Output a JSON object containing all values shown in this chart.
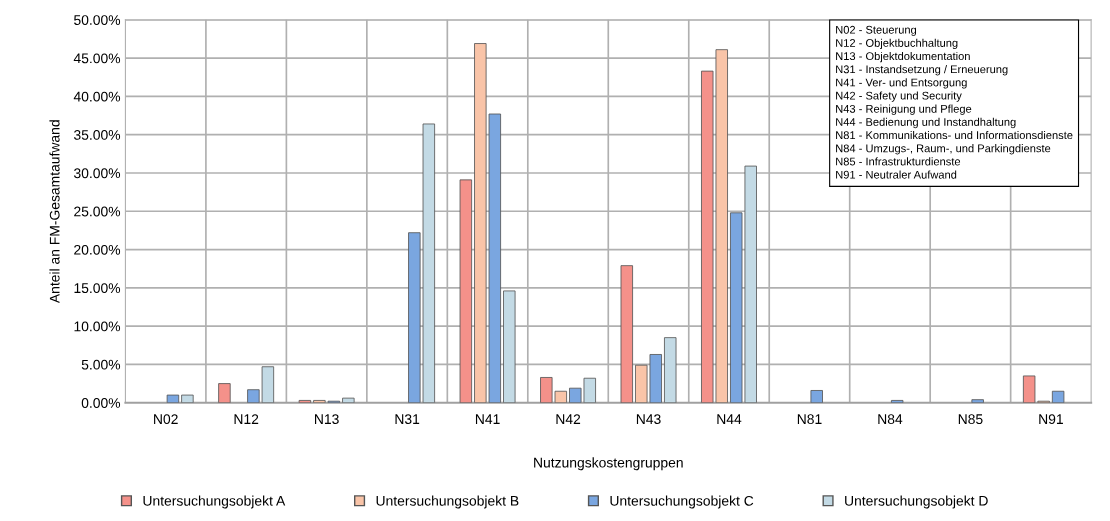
{
  "chart_data": {
    "type": "bar",
    "xlabel": "Nutzungskostengruppen",
    "ylabel": "Anteil an FM-Gesamtaufwand",
    "categories": [
      "N02",
      "N12",
      "N13",
      "N31",
      "N41",
      "N42",
      "N43",
      "N44",
      "N81",
      "N84",
      "N85",
      "N91"
    ],
    "series": [
      {
        "name": "Untersuchungsobjekt A",
        "color": "#f4918a",
        "values": [
          null,
          2.5,
          0.3,
          null,
          29.1,
          3.3,
          17.9,
          43.3,
          null,
          null,
          null,
          3.5
        ]
      },
      {
        "name": "Untersuchungsobjekt B",
        "color": "#f9c4a8",
        "values": [
          null,
          null,
          0.3,
          null,
          46.9,
          1.5,
          4.9,
          46.1,
          null,
          null,
          null,
          0.2
        ]
      },
      {
        "name": "Untersuchungsobjekt C",
        "color": "#7aa6e0",
        "values": [
          1.0,
          1.7,
          0.2,
          22.2,
          37.7,
          1.9,
          6.3,
          24.8,
          1.6,
          0.3,
          0.4,
          1.5
        ]
      },
      {
        "name": "Untersuchungsobjekt D",
        "color": "#c3dae5",
        "values": [
          1.0,
          4.7,
          0.6,
          36.4,
          14.6,
          3.2,
          8.5,
          30.9,
          null,
          null,
          null,
          null
        ]
      }
    ],
    "ylim": [
      0,
      50
    ],
    "yticks": [
      {
        "value": 0,
        "label": "0.00%"
      },
      {
        "value": 5,
        "label": "5.00%"
      },
      {
        "value": 10,
        "label": "10.00%"
      },
      {
        "value": 15,
        "label": "15.00%"
      },
      {
        "value": 20,
        "label": "20.00%"
      },
      {
        "value": 25,
        "label": "25.00%"
      },
      {
        "value": 30,
        "label": "30.00%"
      },
      {
        "value": 35,
        "label": "35.00%"
      },
      {
        "value": 40,
        "label": "40.00%"
      },
      {
        "value": 45,
        "label": "45.00%"
      },
      {
        "value": 50,
        "label": "50.00%"
      }
    ],
    "grid": true,
    "legend": "bottom",
    "annotations": [
      "N02 - Steuerung",
      "N12 - Objektbuchhaltung",
      "N13 - Objektdokumentation",
      "N31 - Instandsetzung / Erneuerung",
      "N41 - Ver- und Entsorgung",
      "N42 - Safety und Security",
      "N43 - Reinigung und Pflege",
      "N44 - Bedienung und Instandhaltung",
      "N81 - Kommunikations- und Informationsdienste",
      "N84 - Umzugs-, Raum-, und Parkingdienste",
      "N85 - Infrastrukturdienste",
      "N91 - Neutraler Aufwand"
    ]
  }
}
